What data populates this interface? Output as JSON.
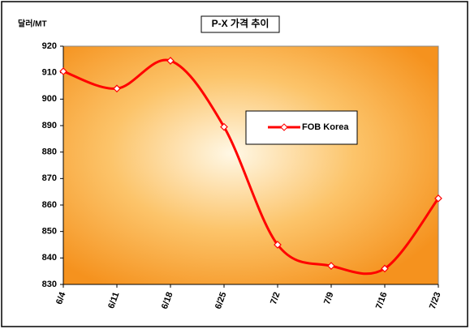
{
  "chart_data": {
    "type": "line",
    "title": "P-X 가격 추이",
    "y_label": "달러/MT",
    "categories": [
      "6/4",
      "6/11",
      "6/18",
      "6/25",
      "7/2",
      "7/9",
      "7/16",
      "7/23"
    ],
    "series": [
      {
        "name": "FOB Korea",
        "color": "#ff0000",
        "values": [
          910.5,
          904,
          914.5,
          889.5,
          845,
          837,
          836,
          862.5
        ]
      }
    ],
    "ylim": [
      830,
      920
    ],
    "yticks": [
      830,
      840,
      850,
      860,
      870,
      880,
      890,
      900,
      910,
      920
    ],
    "smooth": true
  }
}
